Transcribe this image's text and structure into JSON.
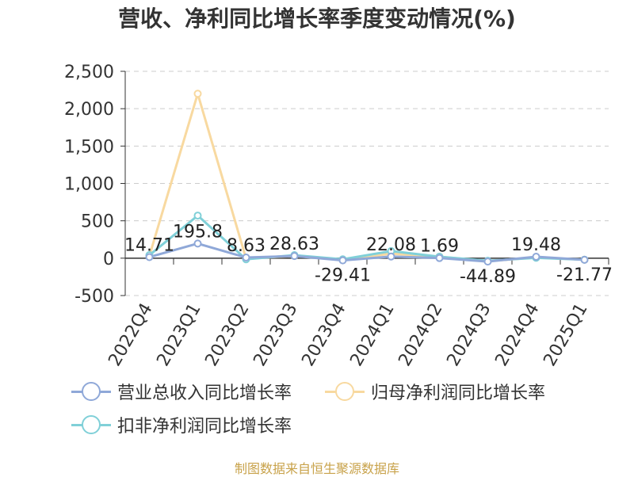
{
  "title": "营收、净利同比增长率季度变动情况(%)",
  "source": "制图数据来自恒生聚源数据库",
  "chart_data": {
    "type": "line",
    "categories": [
      "2022Q4",
      "2023Q1",
      "2023Q2",
      "2023Q3",
      "2023Q4",
      "2024Q1",
      "2024Q2",
      "2024Q3",
      "2024Q4",
      "2025Q1"
    ],
    "y_ticks": [
      "2,500",
      "2,000",
      "1,500",
      "1,000",
      "500",
      "0",
      "-500"
    ],
    "y_tick_values": [
      2500,
      2000,
      1500,
      1000,
      500,
      0,
      -500
    ],
    "ylim": [
      -500,
      2500
    ],
    "grid": true,
    "legend_position": "bottom",
    "series": [
      {
        "name": "营业总收入同比增长率",
        "color": "#8fa8d8",
        "values": [
          14.71,
          195.8,
          8.63,
          28.63,
          -29.41,
          22.08,
          1.69,
          -44.89,
          19.48,
          -21.77
        ],
        "labels": [
          "14.71",
          "195.8",
          "8.63",
          "28.63",
          "-29.41",
          "22.08",
          "1.69",
          "-44.89",
          "19.48",
          "-21.77"
        ]
      },
      {
        "name": "归母净利润同比增长率",
        "color": "#f8d9a0",
        "values": [
          30,
          2200,
          -5,
          30,
          -20,
          60,
          20,
          -40,
          10,
          -20
        ]
      },
      {
        "name": "扣非净利润同比增长率",
        "color": "#80d0d8",
        "values": [
          40,
          570,
          -15,
          40,
          -15,
          95,
          20,
          -35,
          5,
          -20
        ]
      }
    ]
  }
}
